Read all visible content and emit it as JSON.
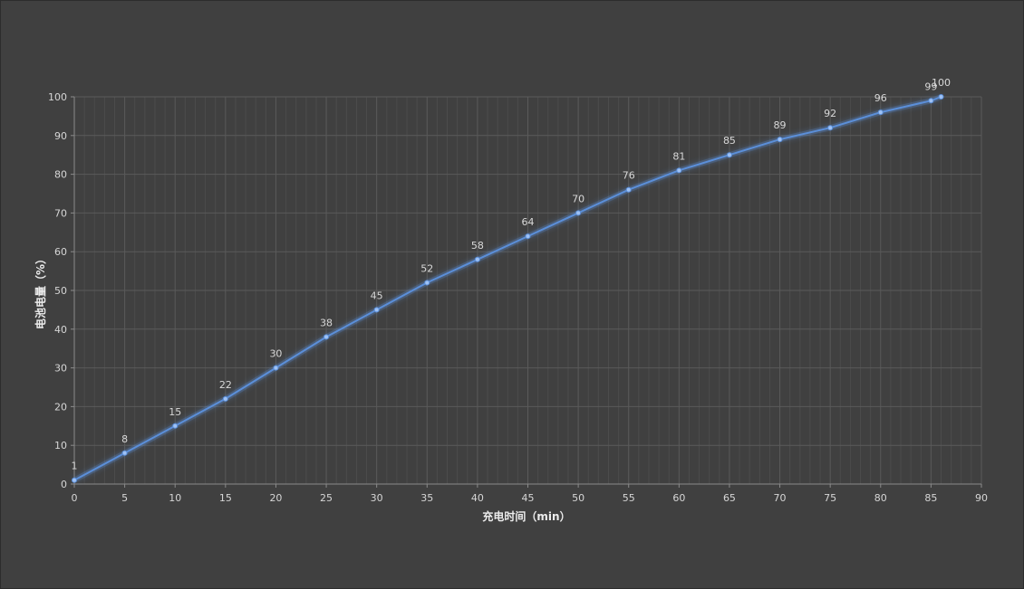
{
  "chart_data": {
    "type": "line",
    "title": "",
    "xlabel": "充电时间（min）",
    "ylabel": "电池电量（%）",
    "xlim": [
      0,
      90
    ],
    "ylim": [
      0,
      100
    ],
    "x_ticks": [
      0,
      5,
      10,
      15,
      20,
      25,
      30,
      35,
      40,
      45,
      50,
      55,
      60,
      65,
      70,
      75,
      80,
      85,
      90
    ],
    "y_ticks": [
      0,
      10,
      20,
      30,
      40,
      50,
      60,
      70,
      80,
      90,
      100
    ],
    "grid": true,
    "series": [
      {
        "x": [
          0,
          5,
          10,
          15,
          20,
          25,
          30,
          35,
          40,
          45,
          50,
          55,
          60,
          65,
          70,
          75,
          80,
          85,
          86
        ],
        "values": [
          1,
          8,
          15,
          22,
          30,
          38,
          45,
          52,
          58,
          64,
          70,
          76,
          81,
          85,
          89,
          92,
          96,
          99,
          100
        ],
        "color": "#5b8fd9"
      }
    ]
  },
  "colors": {
    "background": "#404040",
    "grid_major": "#5a5a5a",
    "grid_minor": "#4c4c4c",
    "line": "#5b8fd9"
  }
}
